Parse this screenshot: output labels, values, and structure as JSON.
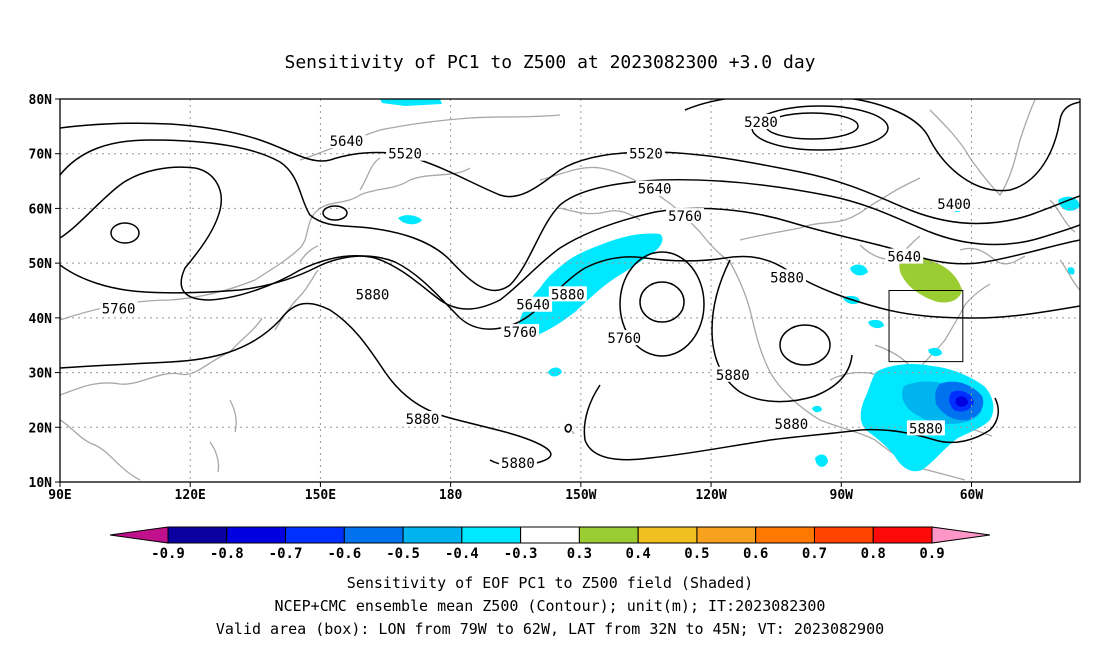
{
  "title": "Sensitivity of PC1 to Z500 at 2023082300 +3.0 day",
  "axes": {
    "lat_ticks": [
      "10N",
      "20N",
      "30N",
      "40N",
      "50N",
      "60N",
      "70N",
      "80N"
    ],
    "lon_ticks": [
      "90E",
      "120E",
      "150E",
      "180",
      "150W",
      "120W",
      "90W",
      "60W"
    ]
  },
  "contour_labels": [
    {
      "value": "5280",
      "lon": -108.5,
      "lat": 75.8
    },
    {
      "value": "5400",
      "lon": -64,
      "lat": 60.8
    },
    {
      "value": "5520",
      "lon": -190.5,
      "lat": 70
    },
    {
      "value": "5520",
      "lon": -135,
      "lat": 70
    },
    {
      "value": "5640",
      "lon": -204,
      "lat": 72.3
    },
    {
      "value": "5640",
      "lon": -133,
      "lat": 63.6
    },
    {
      "value": "5640",
      "lon": -161,
      "lat": 42.4
    },
    {
      "value": "5640",
      "lon": -75.5,
      "lat": 51.2
    },
    {
      "value": "5760",
      "lon": -126,
      "lat": 58.6
    },
    {
      "value": "5760",
      "lon": -256.5,
      "lat": 41.7
    },
    {
      "value": "5760",
      "lon": -164,
      "lat": 37.4
    },
    {
      "value": "5760",
      "lon": -140,
      "lat": 36.3
    },
    {
      "value": "5880",
      "lon": -102.5,
      "lat": 47.4
    },
    {
      "value": "5880",
      "lon": -198,
      "lat": 44.3
    },
    {
      "value": "5880",
      "lon": -153,
      "lat": 44.3
    },
    {
      "value": "5880",
      "lon": -115,
      "lat": 29.6
    },
    {
      "value": "5880",
      "lon": -186.5,
      "lat": 21.5
    },
    {
      "value": "5880",
      "lon": -101.5,
      "lat": 20.6
    },
    {
      "value": "5880",
      "lon": -70.5,
      "lat": 19.8
    },
    {
      "value": "5880",
      "lon": -164.5,
      "lat": 13.5
    }
  ],
  "valid_box": {
    "lon_min": -79,
    "lon_max": -62,
    "lat_min": 32,
    "lat_max": 45
  },
  "colorbar": {
    "labels": [
      "-0.9",
      "-0.8",
      "-0.7",
      "-0.6",
      "-0.5",
      "-0.4",
      "-0.3",
      "0.3",
      "0.4",
      "0.5",
      "0.6",
      "0.7",
      "0.8",
      "0.9"
    ],
    "colors": [
      "#0a00a0",
      "#0000e0",
      "#0030ff",
      "#0072f0",
      "#00b4f0",
      "#00e8ff",
      "#ffffff",
      "#9acd32",
      "#f0c020",
      "#f7a21e",
      "#ff7800",
      "#ff4400",
      "#ff0a0a"
    ],
    "low_extend_color": "#c0108c",
    "high_extend_color": "#ff96c8"
  },
  "caption": {
    "line1": "Sensitivity of EOF PC1 to Z500 field (Shaded)",
    "line2": "NCEP+CMC ensemble mean Z500 (Contour); unit(m); IT:2023082300",
    "line3": "Valid area (box): LON from 79W to 62W, LAT from 32N to 45N; VT: 2023082900"
  },
  "colors": {
    "grid": "#999999",
    "coast": "#a8a8a8",
    "contour": "#000000",
    "shade_cyan": "#00e8ff",
    "shade_lightblue": "#00b4f0",
    "shade_blue": "#0072f0",
    "shade_darkblue": "#0030ff",
    "shade_navy": "#0000e0",
    "shade_green": "#9acd32"
  }
}
